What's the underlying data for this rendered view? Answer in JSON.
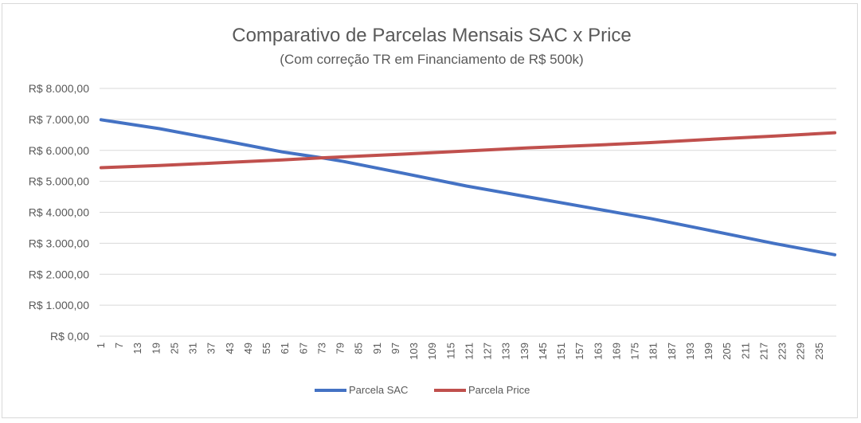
{
  "chart_data": {
    "type": "line",
    "title": "Comparativo de Parcelas Mensais SAC x Price",
    "subtitle": "(Com correção TR em Financiamento de R$ 500k)",
    "xlabel": "",
    "ylabel": "",
    "ylim": [
      0,
      8000
    ],
    "yticks": [
      0,
      1000,
      2000,
      3000,
      4000,
      5000,
      6000,
      7000,
      8000
    ],
    "ytick_labels": [
      "R$ 0,00",
      "R$ 1.000,00",
      "R$ 2.000,00",
      "R$ 3.000,00",
      "R$ 4.000,00",
      "R$ 5.000,00",
      "R$ 6.000,00",
      "R$ 7.000,00",
      "R$ 8.000,00"
    ],
    "xlim": [
      1,
      240
    ],
    "xtick_labels": [
      "1",
      "7",
      "13",
      "19",
      "25",
      "31",
      "37",
      "43",
      "49",
      "55",
      "61",
      "67",
      "73",
      "79",
      "85",
      "91",
      "97",
      "103",
      "109",
      "115",
      "121",
      "127",
      "133",
      "139",
      "145",
      "151",
      "157",
      "163",
      "169",
      "175",
      "181",
      "187",
      "193",
      "199",
      "205",
      "211",
      "217",
      "223",
      "229",
      "235"
    ],
    "grid": true,
    "legend_position": "bottom",
    "series": [
      {
        "name": "Parcela SAC",
        "color": "#4472c4",
        "x": [
          1,
          20,
          40,
          60,
          73,
          80,
          100,
          120,
          140,
          160,
          180,
          200,
          220,
          240
        ],
        "values": [
          6990,
          6700,
          6330,
          5950,
          5760,
          5640,
          5250,
          4850,
          4500,
          4150,
          3800,
          3400,
          3000,
          2630
        ]
      },
      {
        "name": "Parcela Price",
        "color": "#c0504d",
        "x": [
          1,
          20,
          40,
          60,
          73,
          80,
          100,
          120,
          140,
          160,
          180,
          200,
          220,
          240
        ],
        "values": [
          5440,
          5510,
          5600,
          5690,
          5760,
          5790,
          5880,
          5980,
          6080,
          6160,
          6250,
          6360,
          6460,
          6570
        ]
      }
    ]
  }
}
